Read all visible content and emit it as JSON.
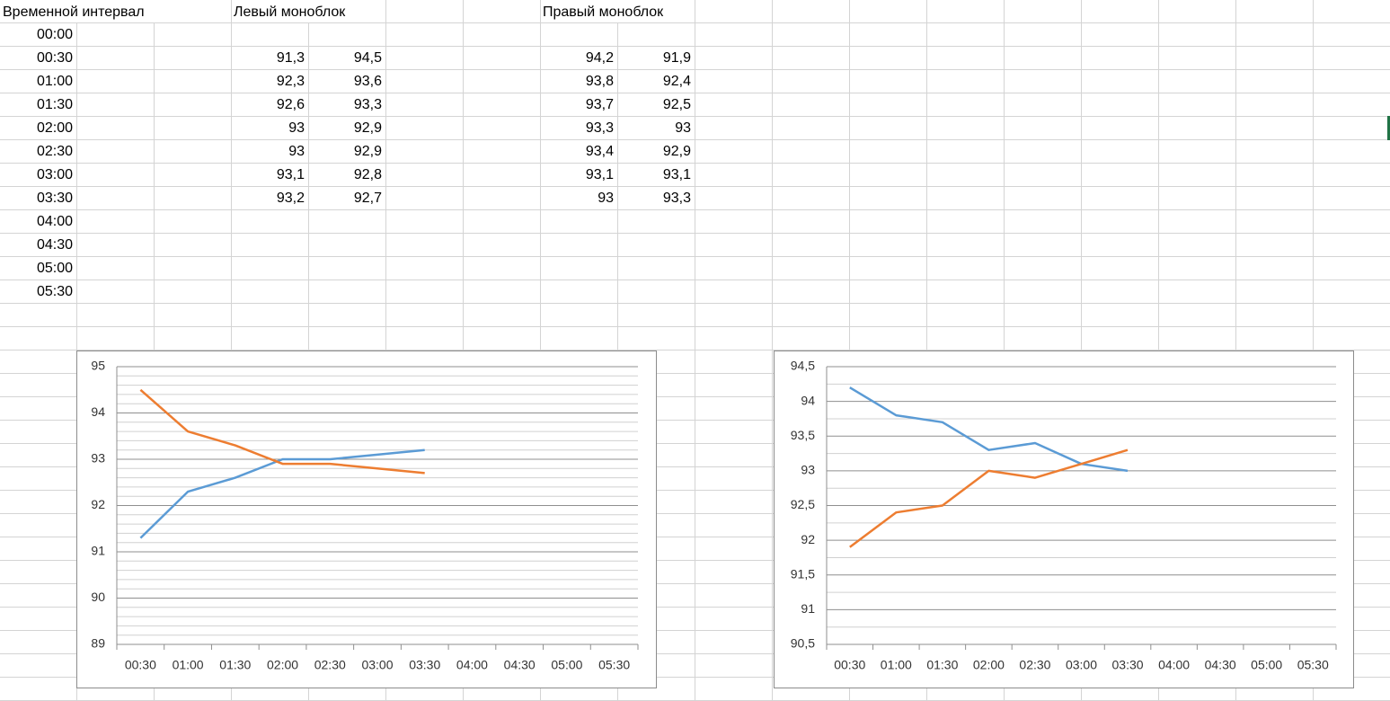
{
  "sheet": {
    "interval_header": "Временной интервал",
    "left_header": "Левый моноблок",
    "right_header": "Правый моноблок",
    "times": [
      "00:00",
      "00:30",
      "01:00",
      "01:30",
      "02:00",
      "02:30",
      "03:00",
      "03:30",
      "04:00",
      "04:30",
      "05:00",
      "05:30"
    ],
    "rows": [
      [
        "91,3",
        "94,5",
        "94,2",
        "91,9"
      ],
      [
        "92,3",
        "93,6",
        "93,8",
        "92,4"
      ],
      [
        "92,6",
        "93,3",
        "93,7",
        "92,5"
      ],
      [
        "93",
        "92,9",
        "93,3",
        "93"
      ],
      [
        "93",
        "92,9",
        "93,4",
        "92,9"
      ],
      [
        "93,1",
        "92,8",
        "93,1",
        "93,1"
      ],
      [
        "93,2",
        "92,7",
        "93",
        "93,3"
      ]
    ]
  },
  "chart_data": [
    {
      "type": "line",
      "categories": [
        "00:30",
        "01:00",
        "01:30",
        "02:00",
        "02:30",
        "03:00",
        "03:30",
        "04:00",
        "04:30",
        "05:00",
        "05:30"
      ],
      "series": [
        {
          "color": "#5b9bd5",
          "values": [
            91.3,
            92.3,
            92.6,
            93,
            93,
            93.1,
            93.2,
            null,
            null,
            null,
            null
          ]
        },
        {
          "color": "#ed7d31",
          "values": [
            94.5,
            93.6,
            93.3,
            92.9,
            92.9,
            92.8,
            92.7,
            null,
            null,
            null,
            null
          ]
        }
      ],
      "ylim": [
        89,
        95
      ],
      "yticks": [
        89,
        90,
        91,
        92,
        93,
        94,
        95
      ],
      "minor_step": 0.2,
      "grid": true
    },
    {
      "type": "line",
      "categories": [
        "00:30",
        "01:00",
        "01:30",
        "02:00",
        "02:30",
        "03:00",
        "03:30",
        "04:00",
        "04:30",
        "05:00",
        "05:30"
      ],
      "series": [
        {
          "color": "#5b9bd5",
          "values": [
            94.2,
            93.8,
            93.7,
            93.3,
            93.4,
            93.1,
            93,
            null,
            null,
            null,
            null
          ]
        },
        {
          "color": "#ed7d31",
          "values": [
            91.9,
            92.4,
            92.5,
            93,
            92.9,
            93.1,
            93.3,
            null,
            null,
            null,
            null
          ]
        }
      ],
      "ylim": [
        90.5,
        94.5
      ],
      "yticks": [
        {
          "value": 90.5,
          "label": "90,5"
        },
        91,
        {
          "value": 91.5,
          "label": "91,5"
        },
        92,
        {
          "value": 92.5,
          "label": "92,5"
        },
        93,
        {
          "value": 93.5,
          "label": "93,5"
        },
        94,
        {
          "value": 94.5,
          "label": "94,5"
        }
      ],
      "minor_step": 0.25,
      "grid": true
    }
  ]
}
